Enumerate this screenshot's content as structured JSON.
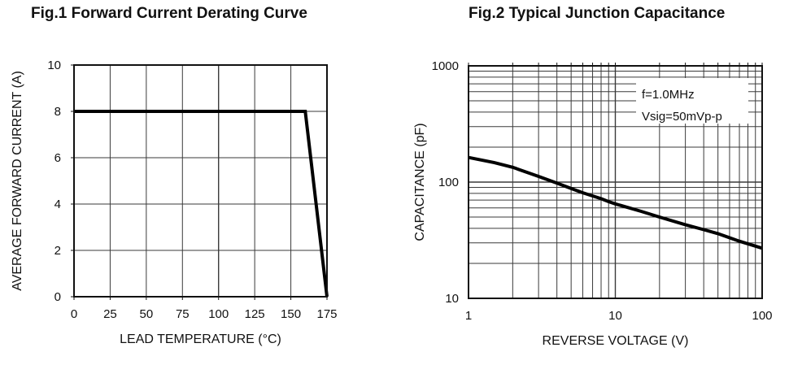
{
  "colors": {
    "ink": "#111111",
    "grid": "#3a3a3a",
    "curve": "#000000",
    "background": "#ffffff"
  },
  "chart_data": [
    {
      "id": "fig1",
      "type": "line",
      "title": "Fig.1 Forward Current Derating Curve",
      "xlabel": "LEAD TEMPERATURE (°C)",
      "ylabel": "AVERAGE FORWARD CURRENT (A)",
      "xscale": "linear",
      "yscale": "linear",
      "xlim": [
        0,
        175
      ],
      "ylim": [
        0,
        10
      ],
      "xticks": [
        0,
        25,
        50,
        75,
        100,
        125,
        150,
        175
      ],
      "yticks": [
        0,
        2,
        4,
        6,
        8,
        10
      ],
      "grid": "major",
      "legend": "none",
      "series": [
        {
          "name": "forward-current-derating",
          "points": [
            [
              0,
              8
            ],
            [
              160,
              8
            ],
            [
              175,
              0
            ]
          ]
        }
      ]
    },
    {
      "id": "fig2",
      "type": "line",
      "title": "Fig.2 Typical Junction Capacitance",
      "xlabel": "REVERSE VOLTAGE (V)",
      "ylabel": "CAPACITANCE (pF)",
      "xscale": "log",
      "yscale": "log",
      "xlim": [
        1,
        100
      ],
      "ylim": [
        10,
        1000
      ],
      "xticks": [
        1,
        10,
        100
      ],
      "yticks": [
        10,
        100,
        1000
      ],
      "grid": "log-minor",
      "legend": "none",
      "annotation": {
        "lines": [
          "f=1.0MHz",
          "Vsig=50mVp-p"
        ]
      },
      "series": [
        {
          "name": "junction-capacitance",
          "points": [
            [
              1,
              163
            ],
            [
              1.5,
              147
            ],
            [
              2,
              134
            ],
            [
              3,
              112
            ],
            [
              4,
              98
            ],
            [
              5,
              88
            ],
            [
              6,
              81
            ],
            [
              7,
              76
            ],
            [
              8,
              72
            ],
            [
              9,
              68
            ],
            [
              10,
              65
            ],
            [
              15,
              56
            ],
            [
              20,
              50
            ],
            [
              30,
              43
            ],
            [
              40,
              39
            ],
            [
              50,
              36
            ],
            [
              70,
              31
            ],
            [
              100,
              27
            ]
          ]
        }
      ]
    }
  ]
}
